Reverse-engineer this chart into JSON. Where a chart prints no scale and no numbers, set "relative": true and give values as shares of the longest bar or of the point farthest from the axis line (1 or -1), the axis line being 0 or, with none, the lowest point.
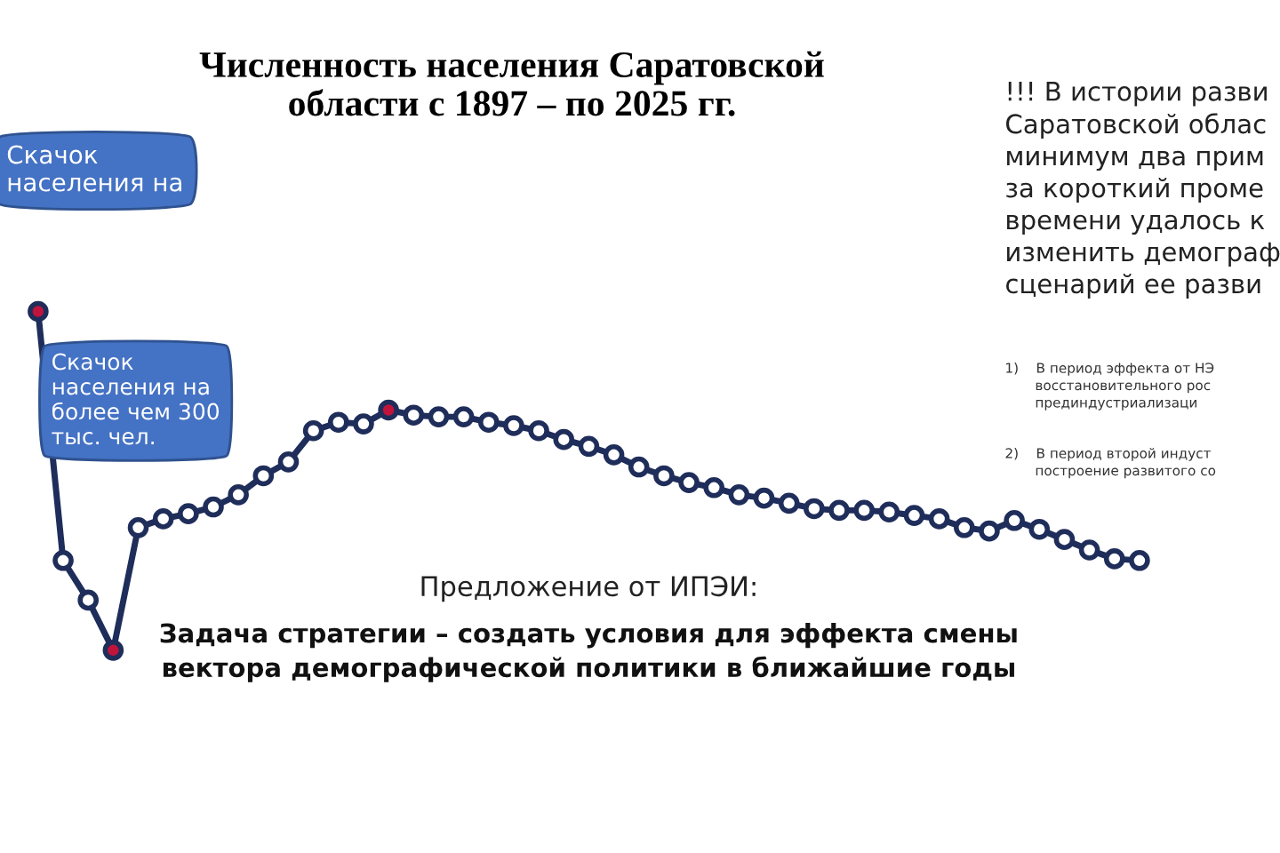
{
  "chart_data": {
    "type": "line",
    "relative": true,
    "title": "Численность населения Саратовской\nобласти с 1897 – по 2025 гг.",
    "categories": [
      null,
      null,
      null,
      null,
      null,
      null,
      null,
      null,
      null,
      null,
      null,
      null,
      null,
      null,
      null,
      null,
      null,
      null,
      null,
      null,
      null,
      null,
      null,
      null,
      null,
      null,
      null,
      null,
      null,
      null,
      null,
      null,
      null,
      null,
      null,
      null,
      null,
      null,
      null,
      null,
      null,
      null,
      null,
      null,
      null
    ],
    "series": [
      {
        "color": "#1f2d5a",
        "marker": "circle",
        "values": [
          1.0,
          0.265,
          0.148,
          0,
          0.362,
          0.388,
          0.403,
          0.423,
          0.459,
          0.515,
          0.556,
          0.648,
          0.673,
          0.668,
          0.709,
          0.694,
          0.689,
          0.689,
          0.673,
          0.663,
          0.648,
          0.622,
          0.602,
          0.577,
          0.541,
          0.515,
          0.495,
          0.48,
          0.459,
          0.449,
          0.434,
          0.418,
          0.413,
          0.413,
          0.408,
          0.398,
          0.388,
          0.362,
          0.352,
          0.383,
          0.357,
          0.327,
          0.296,
          0.27,
          0.265
        ],
        "colors": [
          "#c0143c",
          "#ffffff",
          "#ffffff",
          "#c0143c",
          "#ffffff",
          "#ffffff",
          "#ffffff",
          "#ffffff",
          "#ffffff",
          "#ffffff",
          "#ffffff",
          "#ffffff",
          "#ffffff",
          "#ffffff",
          "#c0143c",
          "#ffffff",
          "#ffffff",
          "#ffffff",
          "#ffffff",
          "#ffffff",
          "#ffffff",
          "#ffffff",
          "#ffffff",
          "#ffffff",
          "#ffffff",
          "#ffffff",
          "#ffffff",
          "#ffffff",
          "#ffffff",
          "#ffffff",
          "#ffffff",
          "#ffffff",
          "#ffffff",
          "#ffffff",
          "#ffffff",
          "#ffffff",
          "#ffffff",
          "#ffffff",
          "#ffffff",
          "#ffffff",
          "#ffffff",
          "#ffffff",
          "#ffffff",
          "#ffffff",
          "#ffffff"
        ]
      }
    ],
    "annotations": [
      "Скачок\nнаселения на",
      "Скачок\nнаселения на\nболее чем 300\nтыс. чел.",
      "!!! В истории разви\nСаратовской облас\nминимум два прим\nза короткий проме\nвремени удалось к\nизменить демограф\nсценарий ее разви",
      "1)    В период эффекта от НЭ\n       восстановительного рос\n       прединдустриализаци",
      "2)    В период второй индуст\n       построение развитого со",
      "Предложение от ИПЭИ:",
      "Задача стратегии – создать условия для эффекта смены\nвектора демографической политики в ближайшие годы"
    ],
    "line_style": "solid"
  }
}
